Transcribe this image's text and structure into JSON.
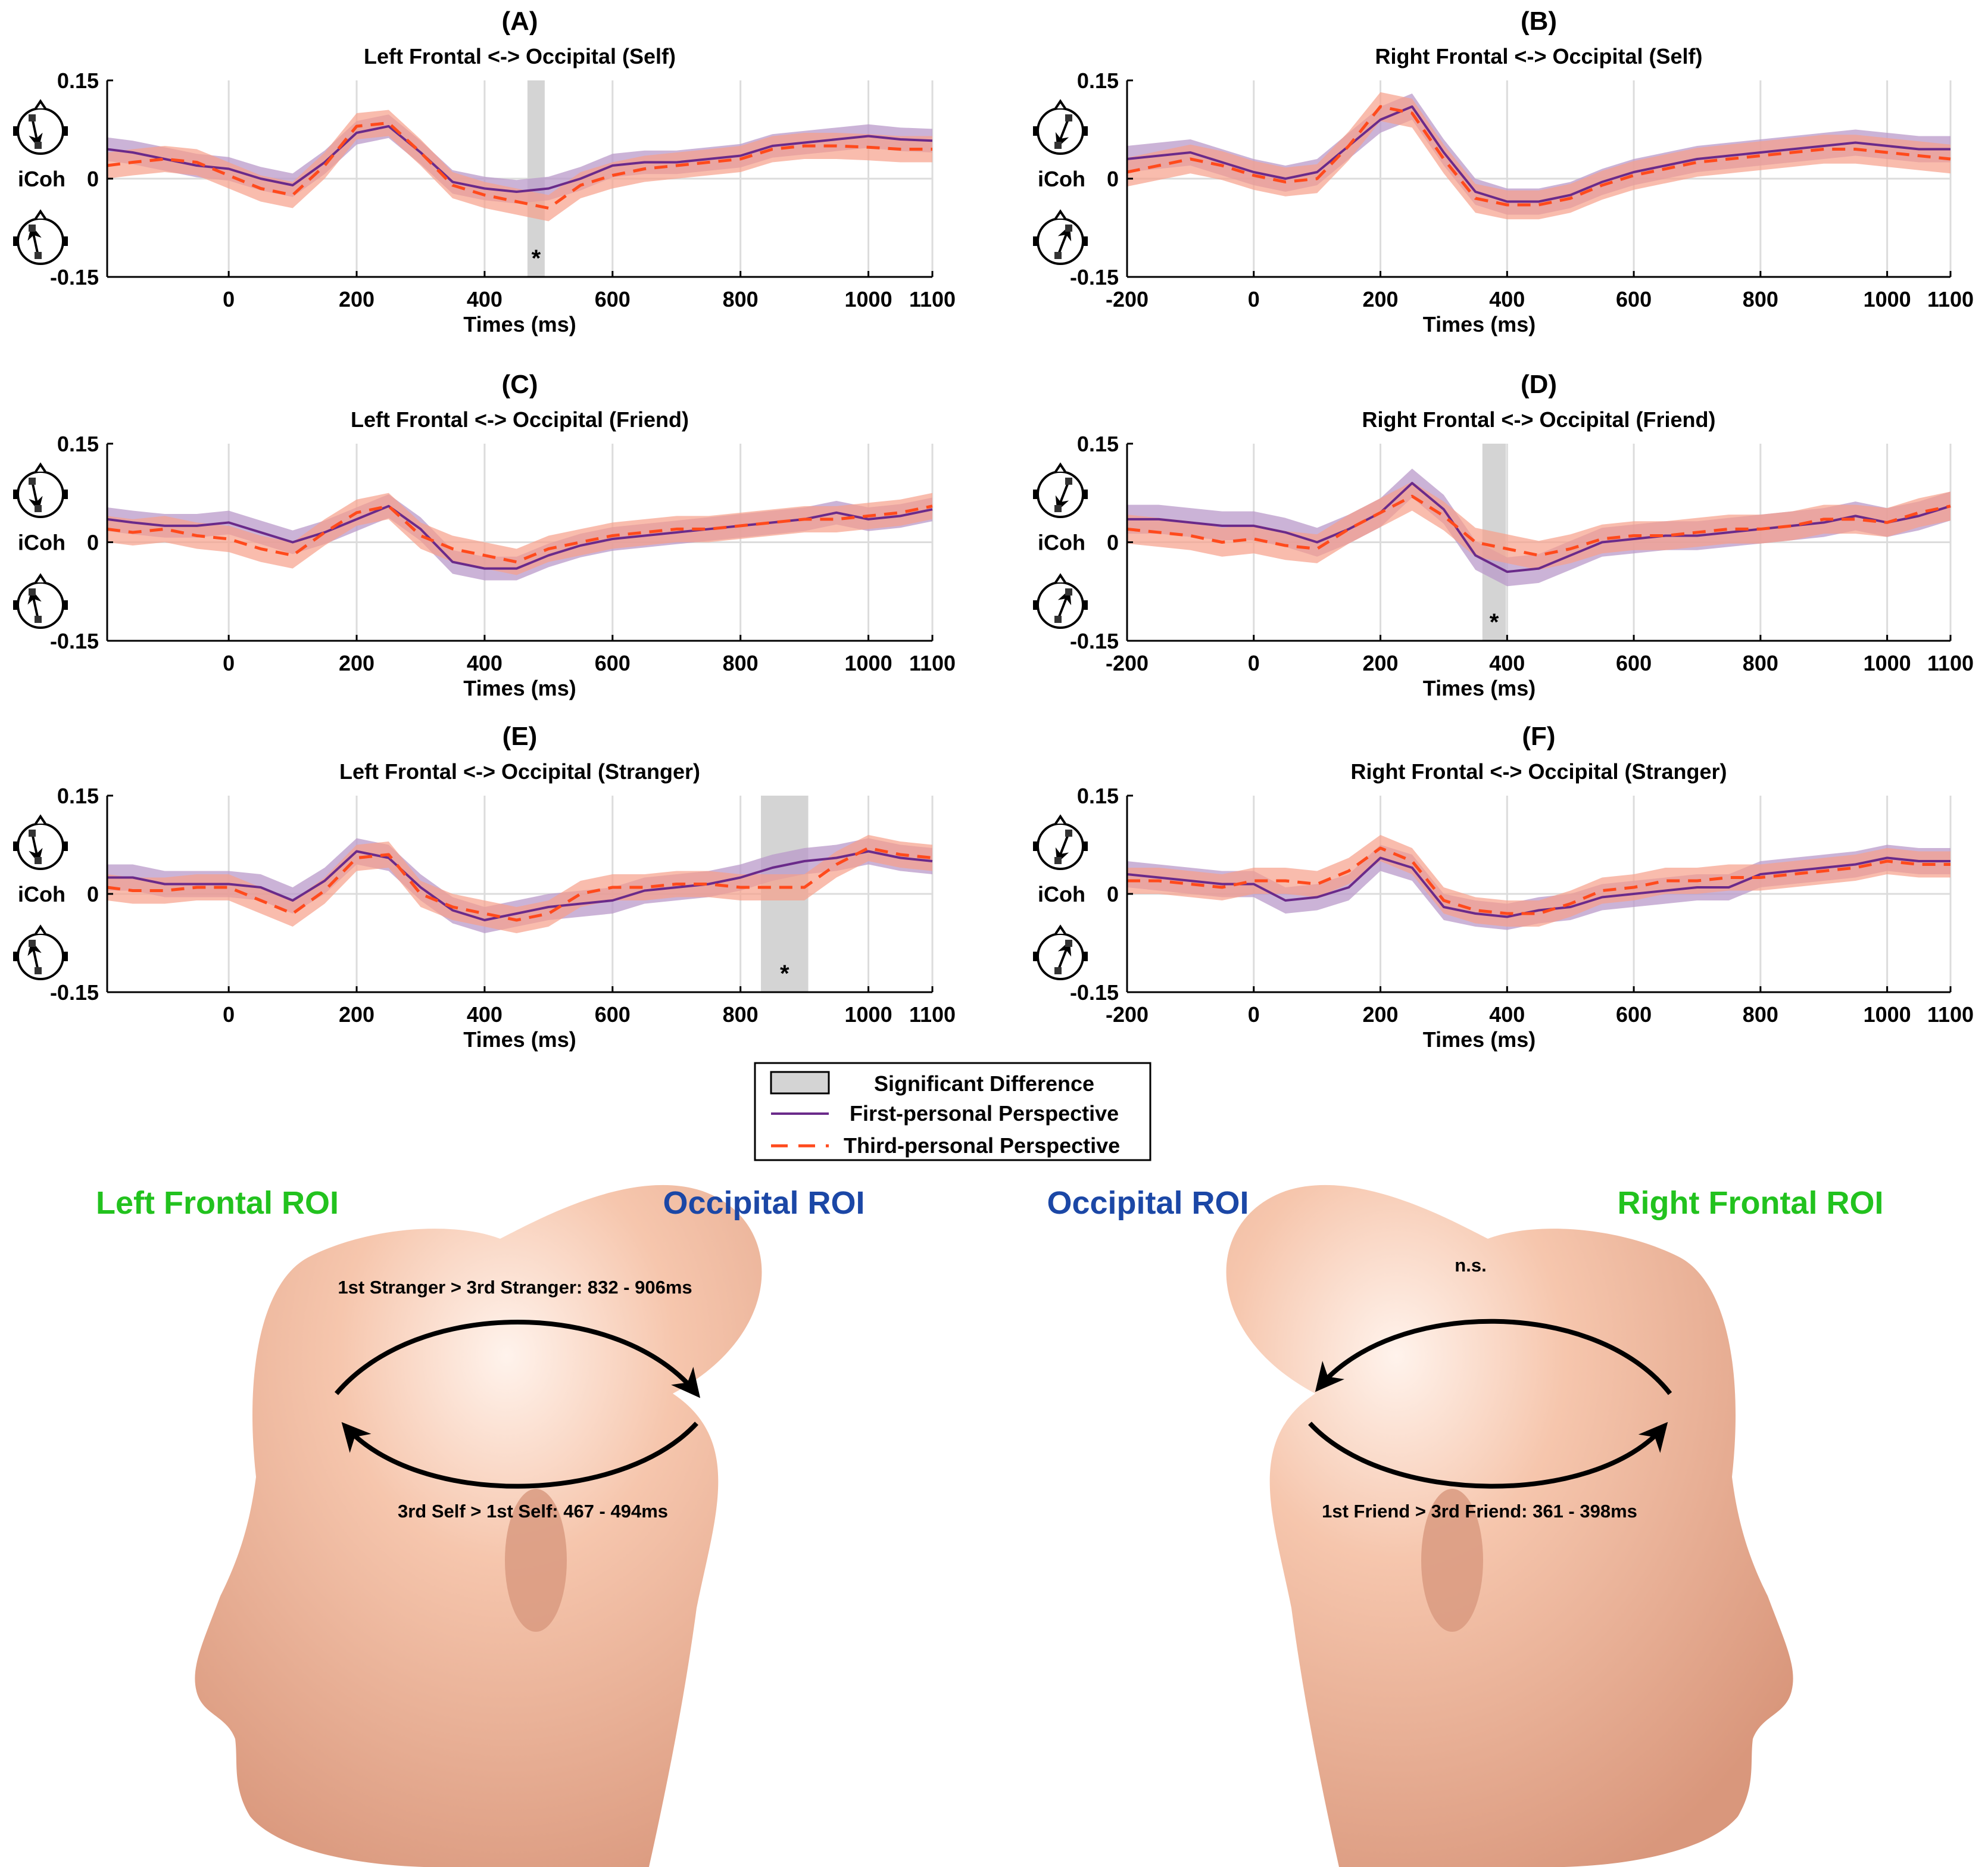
{
  "legend": {
    "items": [
      {
        "label": "Significant Difference",
        "kind": "box"
      },
      {
        "label": "First-personal Perspective",
        "kind": "solid"
      },
      {
        "label": "Third-personal Perspective",
        "kind": "dashed"
      }
    ]
  },
  "colors": {
    "first": "#6a2a8a",
    "first_band": "#b99ac9",
    "third": "#ff4a1c",
    "third_band": "#f7a08a",
    "sig": "#d4d4d4",
    "roi_frontal": "#22c21e",
    "roi_occipital": "#1b47a6",
    "skin": "#f0b89c"
  },
  "heads": {
    "left": {
      "frontal_label": "Left Frontal ROI",
      "occipital_label": "Occipital ROI",
      "top_note": "1st Stranger > 3rd Stranger: 832 - 906ms",
      "bottom_note": "3rd Self > 1st Self: 467 - 494ms"
    },
    "right": {
      "occipital_label": "Occipital ROI",
      "frontal_label": "Right Frontal ROI",
      "top_note": "n.s.",
      "bottom_note": "1st Friend > 3rd Friend: 361 - 398ms"
    }
  },
  "chart_data": [
    {
      "type": "line",
      "letter": "(A)",
      "title": "Left Frontal <-> Occipital (Self)",
      "xlabel": "Times (ms)",
      "ylabel": "iCoh",
      "xlim": [
        -190,
        1100
      ],
      "ylim": [
        -0.15,
        0.15
      ],
      "xticks": [
        0,
        200,
        400,
        600,
        800,
        1000,
        1100
      ],
      "yticks": [
        "0.15",
        "0",
        "-0.15"
      ],
      "significant": [
        {
          "start": 467,
          "end": 494,
          "label": "*"
        }
      ],
      "x": [
        -190,
        -150,
        -100,
        -50,
        0,
        50,
        100,
        150,
        200,
        250,
        300,
        350,
        400,
        450,
        500,
        550,
        600,
        650,
        700,
        750,
        800,
        850,
        900,
        950,
        1000,
        1050,
        1100
      ],
      "series": [
        {
          "name": "First-personal Perspective",
          "values": [
            0.045,
            0.04,
            0.03,
            0.02,
            0.015,
            0.0,
            -0.01,
            0.025,
            0.07,
            0.08,
            0.04,
            -0.005,
            -0.015,
            -0.02,
            -0.015,
            0.0,
            0.02,
            0.025,
            0.025,
            0.03,
            0.035,
            0.05,
            0.055,
            0.06,
            0.065,
            0.06,
            0.058
          ],
          "band": 0.018
        },
        {
          "name": "Third-personal Perspective",
          "values": [
            0.02,
            0.025,
            0.03,
            0.025,
            0.005,
            -0.015,
            -0.025,
            0.02,
            0.08,
            0.085,
            0.04,
            -0.01,
            -0.025,
            -0.035,
            -0.045,
            -0.01,
            0.005,
            0.015,
            0.02,
            0.025,
            0.03,
            0.045,
            0.05,
            0.05,
            0.048,
            0.045,
            0.045
          ],
          "band": 0.02
        }
      ]
    },
    {
      "type": "line",
      "letter": "(B)",
      "title": "Right Frontal <-> Occipital (Self)",
      "xlabel": "Times (ms)",
      "ylabel": "iCoh",
      "xlim": [
        -200,
        1100
      ],
      "ylim": [
        -0.15,
        0.15
      ],
      "xticks": [
        -200,
        0,
        200,
        400,
        600,
        800,
        1000,
        1100
      ],
      "yticks": [
        "0.15",
        "0",
        "-0.15"
      ],
      "significant": [],
      "x": [
        -200,
        -150,
        -100,
        -50,
        0,
        50,
        100,
        150,
        200,
        250,
        300,
        350,
        400,
        450,
        500,
        550,
        600,
        650,
        700,
        750,
        800,
        850,
        900,
        950,
        1000,
        1050,
        1100
      ],
      "series": [
        {
          "name": "First-personal Perspective",
          "values": [
            0.03,
            0.035,
            0.04,
            0.025,
            0.01,
            0.0,
            0.01,
            0.05,
            0.09,
            0.11,
            0.04,
            -0.02,
            -0.035,
            -0.035,
            -0.025,
            -0.005,
            0.01,
            0.02,
            0.03,
            0.035,
            0.04,
            0.045,
            0.05,
            0.055,
            0.05,
            0.045,
            0.045
          ],
          "band": 0.02
        },
        {
          "name": "Third-personal Perspective",
          "values": [
            0.01,
            0.02,
            0.03,
            0.02,
            0.005,
            -0.005,
            0.0,
            0.05,
            0.11,
            0.1,
            0.03,
            -0.03,
            -0.04,
            -0.04,
            -0.03,
            -0.01,
            0.005,
            0.015,
            0.025,
            0.03,
            0.035,
            0.04,
            0.045,
            0.045,
            0.04,
            0.035,
            0.03
          ],
          "band": 0.022
        }
      ]
    },
    {
      "type": "line",
      "letter": "(C)",
      "title": "Left Frontal <-> Occipital (Friend)",
      "xlabel": "Times (ms)",
      "ylabel": "iCoh",
      "xlim": [
        -190,
        1100
      ],
      "ylim": [
        -0.15,
        0.15
      ],
      "xticks": [
        0,
        200,
        400,
        600,
        800,
        1000,
        1100
      ],
      "yticks": [
        "0.15",
        "0",
        "-0.15"
      ],
      "significant": [],
      "x": [
        -190,
        -150,
        -100,
        -50,
        0,
        50,
        100,
        150,
        200,
        250,
        300,
        350,
        400,
        450,
        500,
        550,
        600,
        650,
        700,
        750,
        800,
        850,
        900,
        950,
        1000,
        1050,
        1100
      ],
      "series": [
        {
          "name": "First-personal Perspective",
          "values": [
            0.035,
            0.03,
            0.025,
            0.025,
            0.03,
            0.015,
            0.0,
            0.015,
            0.035,
            0.055,
            0.02,
            -0.03,
            -0.04,
            -0.04,
            -0.02,
            -0.005,
            0.005,
            0.01,
            0.015,
            0.02,
            0.025,
            0.03,
            0.035,
            0.045,
            0.035,
            0.04,
            0.05
          ],
          "band": 0.018
        },
        {
          "name": "Third-personal Perspective",
          "values": [
            0.02,
            0.015,
            0.02,
            0.01,
            0.005,
            -0.01,
            -0.02,
            0.015,
            0.045,
            0.055,
            0.01,
            -0.01,
            -0.02,
            -0.03,
            -0.01,
            0.0,
            0.01,
            0.015,
            0.02,
            0.02,
            0.025,
            0.03,
            0.035,
            0.035,
            0.04,
            0.045,
            0.055
          ],
          "band": 0.02
        }
      ]
    },
    {
      "type": "line",
      "letter": "(D)",
      "title": "Right Frontal <-> Occipital (Friend)",
      "xlabel": "Times (ms)",
      "ylabel": "iCoh",
      "xlim": [
        -200,
        1100
      ],
      "ylim": [
        -0.15,
        0.15
      ],
      "xticks": [
        -200,
        0,
        200,
        400,
        600,
        800,
        1000,
        1100
      ],
      "yticks": [
        "0.15",
        "0",
        "-0.15"
      ],
      "significant": [
        {
          "start": 361,
          "end": 398,
          "label": "*"
        }
      ],
      "x": [
        -200,
        -150,
        -100,
        -50,
        0,
        50,
        100,
        150,
        200,
        250,
        300,
        350,
        400,
        450,
        500,
        550,
        600,
        650,
        700,
        750,
        800,
        850,
        900,
        950,
        1000,
        1050,
        1100
      ],
      "series": [
        {
          "name": "First-personal Perspective",
          "values": [
            0.035,
            0.035,
            0.03,
            0.025,
            0.025,
            0.015,
            0.0,
            0.02,
            0.045,
            0.09,
            0.05,
            -0.02,
            -0.045,
            -0.04,
            -0.02,
            0.0,
            0.005,
            0.01,
            0.01,
            0.015,
            0.02,
            0.025,
            0.03,
            0.04,
            0.03,
            0.04,
            0.055
          ],
          "band": 0.022
        },
        {
          "name": "Third-personal Perspective",
          "values": [
            0.02,
            0.015,
            0.01,
            0.0,
            0.005,
            -0.005,
            -0.01,
            0.02,
            0.045,
            0.07,
            0.04,
            0.0,
            -0.01,
            -0.02,
            -0.01,
            0.005,
            0.01,
            0.01,
            0.015,
            0.02,
            0.02,
            0.025,
            0.035,
            0.035,
            0.03,
            0.045,
            0.055
          ],
          "band": 0.022
        }
      ]
    },
    {
      "type": "line",
      "letter": "(E)",
      "title": "Left Frontal <-> Occipital (Stranger)",
      "xlabel": "Times (ms)",
      "ylabel": "iCoh",
      "xlim": [
        -190,
        1100
      ],
      "ylim": [
        -0.15,
        0.15
      ],
      "xticks": [
        0,
        200,
        400,
        600,
        800,
        1000,
        1100
      ],
      "yticks": [
        "0.15",
        "0",
        "-0.15"
      ],
      "significant": [
        {
          "start": 832,
          "end": 906,
          "label": "*"
        }
      ],
      "x": [
        -190,
        -150,
        -100,
        -50,
        0,
        50,
        100,
        150,
        200,
        250,
        300,
        350,
        400,
        450,
        500,
        550,
        600,
        650,
        700,
        750,
        800,
        850,
        900,
        950,
        1000,
        1050,
        1100
      ],
      "series": [
        {
          "name": "First-personal Perspective",
          "values": [
            0.025,
            0.025,
            0.015,
            0.015,
            0.015,
            0.01,
            -0.01,
            0.02,
            0.065,
            0.055,
            0.01,
            -0.025,
            -0.04,
            -0.03,
            -0.02,
            -0.015,
            -0.01,
            0.005,
            0.01,
            0.015,
            0.025,
            0.04,
            0.05,
            0.055,
            0.065,
            0.055,
            0.05
          ],
          "band": 0.02
        },
        {
          "name": "Third-personal Perspective",
          "values": [
            0.01,
            0.005,
            0.005,
            0.01,
            0.01,
            -0.01,
            -0.03,
            0.005,
            0.055,
            0.06,
            0.0,
            -0.02,
            -0.03,
            -0.04,
            -0.03,
            0.0,
            0.01,
            0.01,
            0.015,
            0.015,
            0.01,
            0.01,
            0.01,
            0.045,
            0.07,
            0.06,
            0.055
          ],
          "band": 0.02
        }
      ]
    },
    {
      "type": "line",
      "letter": "(F)",
      "title": "Right Frontal <-> Occipital (Stranger)",
      "xlabel": "Times (ms)",
      "ylabel": "iCoh",
      "xlim": [
        -200,
        1100
      ],
      "ylim": [
        -0.15,
        0.15
      ],
      "xticks": [
        -200,
        0,
        200,
        400,
        600,
        800,
        1000,
        1100
      ],
      "yticks": [
        "0.15",
        "0",
        "-0.15"
      ],
      "significant": [],
      "x": [
        -200,
        -150,
        -100,
        -50,
        0,
        50,
        100,
        150,
        200,
        250,
        300,
        350,
        400,
        450,
        500,
        550,
        600,
        650,
        700,
        750,
        800,
        850,
        900,
        950,
        1000,
        1050,
        1100
      ],
      "series": [
        {
          "name": "First-personal Perspective",
          "values": [
            0.03,
            0.025,
            0.02,
            0.015,
            0.015,
            -0.01,
            -0.005,
            0.01,
            0.055,
            0.04,
            -0.02,
            -0.03,
            -0.035,
            -0.025,
            -0.02,
            -0.005,
            0.0,
            0.005,
            0.01,
            0.01,
            0.03,
            0.035,
            0.04,
            0.045,
            0.055,
            0.05,
            0.05
          ],
          "band": 0.02
        },
        {
          "name": "Third-personal Perspective",
          "values": [
            0.02,
            0.02,
            0.015,
            0.01,
            0.02,
            0.02,
            0.015,
            0.035,
            0.07,
            0.05,
            -0.01,
            -0.025,
            -0.03,
            -0.03,
            -0.015,
            0.005,
            0.01,
            0.02,
            0.02,
            0.025,
            0.025,
            0.03,
            0.035,
            0.04,
            0.05,
            0.045,
            0.045
          ],
          "band": 0.02
        }
      ]
    }
  ]
}
